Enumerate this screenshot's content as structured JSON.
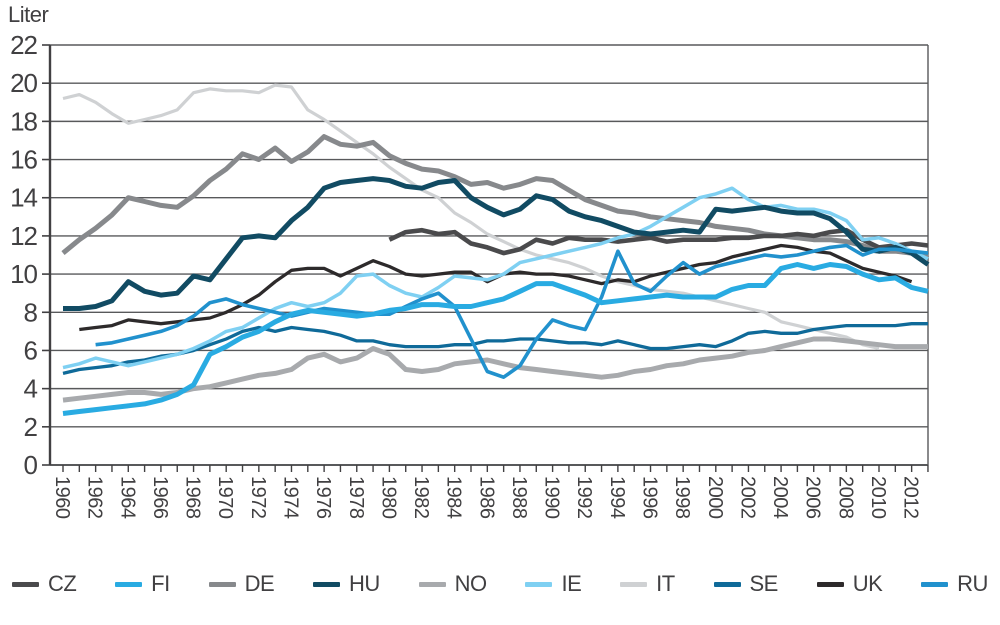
{
  "chart_data": {
    "type": "line",
    "title": "Liter",
    "ylabel": "Liter",
    "xlabel": "",
    "x_range": [
      1960,
      2013
    ],
    "ylim": [
      0,
      22
    ],
    "y_ticks": [
      0,
      2,
      4,
      6,
      8,
      10,
      12,
      14,
      16,
      18,
      20,
      22
    ],
    "x_tick_years": [
      1960,
      1962,
      1964,
      1966,
      1968,
      1970,
      1972,
      1974,
      1976,
      1978,
      1980,
      1982,
      1984,
      1986,
      1988,
      1990,
      1992,
      1994,
      1996,
      1998,
      2000,
      2002,
      2004,
      2006,
      2008,
      2010,
      2012
    ],
    "grid": true,
    "legend_position": "bottom",
    "axis_color": "#414042",
    "grid_color": "#58595b",
    "draw_order": [
      "IT",
      "DE",
      "NO",
      "CZ",
      "UK",
      "SE",
      "IE",
      "HU",
      "RU",
      "FI"
    ],
    "series": [
      {
        "name": "CZ",
        "color": "#4a4a4c",
        "line_width": 4.6,
        "start_year": 1980,
        "values": [
          11.8,
          12.2,
          12.3,
          12.1,
          12.2,
          11.6,
          11.4,
          11.1,
          11.3,
          11.8,
          11.6,
          11.9,
          11.8,
          11.8,
          11.7,
          11.8,
          11.9,
          11.7,
          11.8,
          11.8,
          11.8,
          11.9,
          11.9,
          12.0,
          12.0,
          12.1,
          12.0,
          12.2,
          12.3,
          11.8,
          11.4,
          11.5,
          11.6,
          11.5
        ]
      },
      {
        "name": "FI",
        "color": "#29abe2",
        "line_width": 5.0,
        "start_year": 1960,
        "values": [
          2.7,
          2.8,
          2.9,
          3.0,
          3.1,
          3.2,
          3.4,
          3.7,
          4.2,
          5.8,
          6.2,
          6.7,
          7.0,
          7.5,
          7.9,
          8.1,
          8.0,
          7.9,
          7.8,
          7.9,
          8.1,
          8.2,
          8.4,
          8.4,
          8.3,
          8.3,
          8.5,
          8.7,
          9.1,
          9.5,
          9.5,
          9.2,
          8.9,
          8.5,
          8.6,
          8.7,
          8.8,
          8.9,
          8.8,
          8.8,
          8.8,
          9.2,
          9.4,
          9.4,
          10.3,
          10.5,
          10.3,
          10.5,
          10.4,
          10.0,
          9.7,
          9.8,
          9.3,
          9.1
        ]
      },
      {
        "name": "DE",
        "color": "#87898c",
        "line_width": 5.0,
        "start_year": 1960,
        "values": [
          11.1,
          11.8,
          12.4,
          13.1,
          14.0,
          13.8,
          13.6,
          13.5,
          14.1,
          14.9,
          15.5,
          16.3,
          16.0,
          16.6,
          15.9,
          16.4,
          17.2,
          16.8,
          16.7,
          16.9,
          16.2,
          15.8,
          15.5,
          15.4,
          15.1,
          14.7,
          14.8,
          14.5,
          14.7,
          15.0,
          14.9,
          14.4,
          13.9,
          13.6,
          13.3,
          13.2,
          13.0,
          12.9,
          12.8,
          12.7,
          12.5,
          12.4,
          12.3,
          12.1,
          12.0,
          11.9,
          11.8,
          11.8,
          11.7,
          11.5,
          11.2,
          11.2,
          11.1,
          10.9
        ]
      },
      {
        "name": "HU",
        "color": "#114b63",
        "line_width": 5.0,
        "start_year": 1960,
        "values": [
          8.2,
          8.2,
          8.3,
          8.6,
          9.6,
          9.1,
          8.9,
          9.0,
          9.9,
          9.7,
          10.8,
          11.9,
          12.0,
          11.9,
          12.8,
          13.5,
          14.5,
          14.8,
          14.9,
          15.0,
          14.9,
          14.6,
          14.5,
          14.8,
          14.9,
          14.0,
          13.5,
          13.1,
          13.4,
          14.1,
          13.9,
          13.3,
          13.0,
          12.8,
          12.5,
          12.2,
          12.1,
          12.2,
          12.3,
          12.2,
          13.4,
          13.3,
          13.4,
          13.5,
          13.3,
          13.2,
          13.2,
          12.9,
          12.2,
          11.3,
          11.2,
          11.4,
          11.1,
          10.5
        ]
      },
      {
        "name": "NO",
        "color": "#a8aaad",
        "line_width": 5.0,
        "start_year": 1960,
        "values": [
          3.4,
          3.5,
          3.6,
          3.7,
          3.8,
          3.8,
          3.7,
          3.8,
          4.0,
          4.1,
          4.3,
          4.5,
          4.7,
          4.8,
          5.0,
          5.6,
          5.8,
          5.4,
          5.6,
          6.1,
          5.8,
          5.0,
          4.9,
          5.0,
          5.3,
          5.4,
          5.5,
          5.3,
          5.1,
          5.0,
          4.9,
          4.8,
          4.7,
          4.6,
          4.7,
          4.9,
          5.0,
          5.2,
          5.3,
          5.5,
          5.6,
          5.7,
          5.9,
          6.0,
          6.2,
          6.4,
          6.6,
          6.6,
          6.5,
          6.4,
          6.3,
          6.2,
          6.2,
          6.2
        ]
      },
      {
        "name": "IE",
        "color": "#7fd0f2",
        "line_width": 3.5,
        "start_year": 1960,
        "values": [
          5.1,
          5.3,
          5.6,
          5.4,
          5.2,
          5.4,
          5.6,
          5.8,
          6.1,
          6.5,
          7.0,
          7.2,
          7.7,
          8.2,
          8.5,
          8.3,
          8.5,
          9.0,
          9.9,
          10.0,
          9.4,
          9.0,
          8.8,
          9.3,
          9.9,
          9.8,
          9.7,
          10.0,
          10.6,
          10.8,
          11.0,
          11.2,
          11.4,
          11.6,
          11.9,
          12.1,
          12.5,
          13.0,
          13.5,
          14.0,
          14.2,
          14.5,
          13.9,
          13.5,
          13.6,
          13.4,
          13.4,
          13.2,
          12.8,
          11.8,
          11.9,
          11.6,
          11.2,
          10.8
        ]
      },
      {
        "name": "IT",
        "color": "#cfd1d3",
        "line_width": 3.2,
        "start_year": 1960,
        "values": [
          19.2,
          19.4,
          19.0,
          18.4,
          17.9,
          18.1,
          18.3,
          18.6,
          19.5,
          19.7,
          19.6,
          19.6,
          19.5,
          19.9,
          19.8,
          18.6,
          18.1,
          17.5,
          16.9,
          16.3,
          15.6,
          15.0,
          14.4,
          14.0,
          13.2,
          12.7,
          12.1,
          11.7,
          11.3,
          11.0,
          10.8,
          10.6,
          10.3,
          9.9,
          9.6,
          9.4,
          9.2,
          9.1,
          9.0,
          8.8,
          8.6,
          8.4,
          8.2,
          8.0,
          7.5,
          7.3,
          7.1,
          6.9,
          6.7,
          6.3,
          6.1
        ]
      },
      {
        "name": "SE",
        "color": "#0f6a99",
        "line_width": 3.3,
        "start_year": 1960,
        "values": [
          4.8,
          5.0,
          5.1,
          5.2,
          5.4,
          5.5,
          5.7,
          5.8,
          6.0,
          6.3,
          6.6,
          7.0,
          7.2,
          7.0,
          7.2,
          7.1,
          7.0,
          6.8,
          6.5,
          6.5,
          6.3,
          6.2,
          6.2,
          6.2,
          6.3,
          6.3,
          6.5,
          6.5,
          6.6,
          6.6,
          6.5,
          6.4,
          6.4,
          6.3,
          6.5,
          6.3,
          6.1,
          6.1,
          6.2,
          6.3,
          6.2,
          6.5,
          6.9,
          7.0,
          6.9,
          6.9,
          7.1,
          7.2,
          7.3,
          7.3,
          7.3,
          7.3,
          7.4,
          7.4
        ]
      },
      {
        "name": "UK",
        "color": "#2d2a2b",
        "line_width": 3.3,
        "start_year": 1961,
        "values": [
          7.1,
          7.2,
          7.3,
          7.6,
          7.5,
          7.4,
          7.5,
          7.6,
          7.7,
          8.0,
          8.4,
          8.9,
          9.6,
          10.2,
          10.3,
          10.3,
          9.9,
          10.3,
          10.7,
          10.4,
          10.0,
          9.9,
          10.0,
          10.1,
          10.1,
          9.6,
          10.0,
          10.1,
          10.0,
          10.0,
          9.9,
          9.7,
          9.5,
          9.7,
          9.6,
          9.9,
          10.1,
          10.3,
          10.5,
          10.6,
          10.9,
          11.1,
          11.3,
          11.5,
          11.4,
          11.2,
          11.1,
          10.7,
          10.3,
          10.1,
          9.9,
          9.6
        ]
      },
      {
        "name": "RU",
        "color": "#2191cd",
        "line_width": 3.6,
        "start_year": 1962,
        "values": [
          6.3,
          6.4,
          6.6,
          6.8,
          7.0,
          7.3,
          7.8,
          8.5,
          8.7,
          8.4,
          8.2,
          8.0,
          7.8,
          8.0,
          8.2,
          8.1,
          8.0,
          7.9,
          7.9,
          8.3,
          8.7,
          9.0,
          8.3,
          6.6,
          4.9,
          4.6,
          5.2,
          6.6,
          7.6,
          7.3,
          7.1,
          8.8,
          11.2,
          9.5,
          9.1,
          9.9,
          10.6,
          10.0,
          10.4,
          10.6,
          10.8,
          11.0,
          10.9,
          11.0,
          11.2,
          11.4,
          11.5,
          11.0,
          11.3,
          11.3,
          11.2,
          11.1
        ]
      }
    ]
  }
}
